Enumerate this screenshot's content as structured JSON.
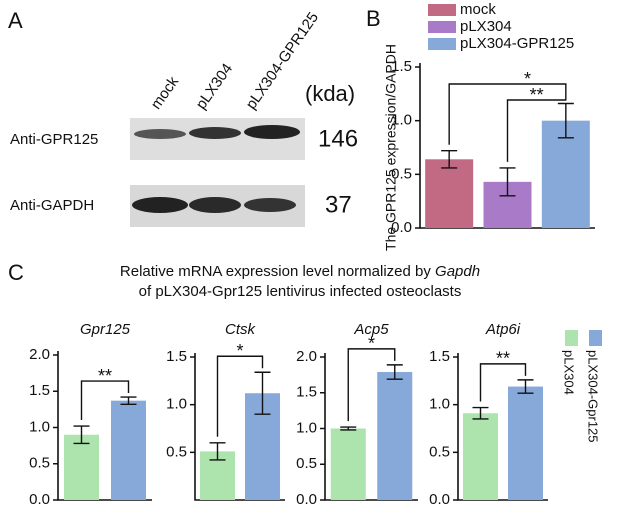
{
  "blot": {
    "label": "A",
    "lanes": [
      "mock",
      "pLX304",
      "pLX304-GPR125"
    ],
    "unit": "(kda)",
    "rows": [
      {
        "label": "Anti-GPR125",
        "size": 146
      },
      {
        "label": "Anti-GAPDH",
        "size": 37
      }
    ]
  },
  "panel_c": {
    "label": "C",
    "title": "Relative mRNA expression level normalized by ",
    "title_gene": "Gapdh",
    "subtitle": "of pLX304-Gpr125 lentivirus infected osteoclasts",
    "legend": [
      {
        "name": "pLX304",
        "color": "#ade3ad"
      },
      {
        "name": "pLX304-Gpr125",
        "color": "#86a9d9"
      }
    ]
  },
  "chart_data": [
    {
      "type": "bar",
      "label": "B",
      "ylabel": "The GPR125 expression/GAPDH",
      "series": [
        {
          "name": "mock",
          "color": "#c26a84",
          "values": [
            0.64
          ],
          "errors": [
            0.08
          ]
        },
        {
          "name": "pLX304",
          "color": "#a87ac8",
          "values": [
            0.43
          ],
          "errors": [
            0.13
          ]
        },
        {
          "name": "pLX304-GPR125",
          "color": "#86a9d9",
          "values": [
            1.0
          ],
          "errors": [
            0.16
          ]
        }
      ],
      "ylim": [
        0,
        1.5
      ],
      "yticks": [
        {
          "value": 0,
          "label": "0.0"
        },
        0.5,
        {
          "value": 1,
          "label": "1.0"
        },
        1.5
      ],
      "annotations": [
        "*",
        "**"
      ]
    },
    {
      "type": "bar",
      "title": "Gpr125",
      "values": [
        0.9,
        1.37
      ],
      "errors": [
        0.12,
        0.05
      ],
      "colors": [
        "#ade3ad",
        "#86a9d9"
      ],
      "ylim": [
        0,
        2
      ],
      "yticks": [
        {
          "value": 0,
          "label": "0.0"
        },
        0.5,
        {
          "value": 1,
          "label": "1.0"
        },
        1.5,
        {
          "value": 2,
          "label": "2.0"
        }
      ],
      "annotations": [
        "**"
      ]
    },
    {
      "type": "bar",
      "title": "Ctsk",
      "values": [
        0.51,
        1.12
      ],
      "errors": [
        0.09,
        0.22
      ],
      "colors": [
        "#ade3ad",
        "#86a9d9"
      ],
      "ylim": [
        0,
        1.5
      ],
      "yticks": [
        0.5,
        {
          "value": 1,
          "label": "1.0"
        },
        1.5
      ],
      "annotations": [
        "*"
      ]
    },
    {
      "type": "bar",
      "title": "Acp5",
      "values": [
        1.0,
        1.79
      ],
      "errors": [
        0.02,
        0.1
      ],
      "colors": [
        "#ade3ad",
        "#86a9d9"
      ],
      "ylim": [
        0,
        2
      ],
      "yticks": [
        {
          "value": 0,
          "label": "0.0"
        },
        0.5,
        {
          "value": 1,
          "label": "1.0"
        },
        1.5,
        {
          "value": 2,
          "label": "2.0"
        }
      ],
      "annotations": [
        "*"
      ]
    },
    {
      "type": "bar",
      "title": "Atp6i",
      "values": [
        0.91,
        1.19
      ],
      "errors": [
        0.06,
        0.07
      ],
      "colors": [
        "#ade3ad",
        "#86a9d9"
      ],
      "ylim": [
        0,
        1.5
      ],
      "yticks": [
        {
          "value": 0,
          "label": "0.0"
        },
        0.5,
        {
          "value": 1,
          "label": "1.0"
        },
        1.5
      ],
      "annotations": [
        "**"
      ]
    }
  ]
}
